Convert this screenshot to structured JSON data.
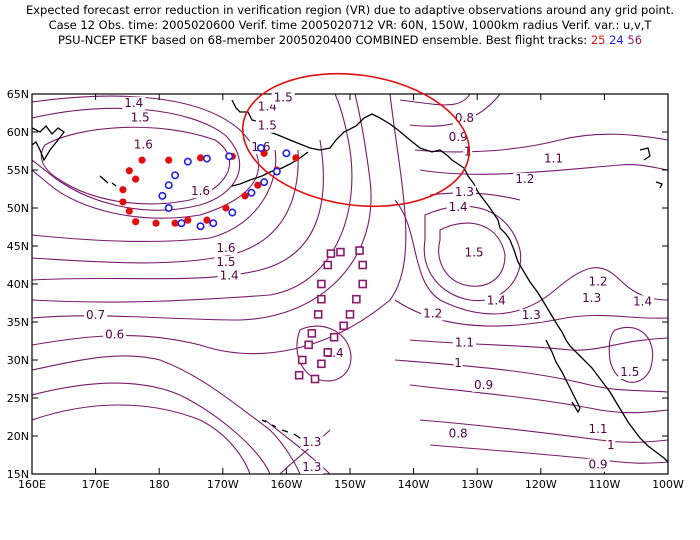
{
  "header": {
    "line1": "Expected forecast error reduction in verification region (VR) due to adaptive observations around any grid point.",
    "line2": "Case 12   Obs. time: 2005020600   Verif. time 2005020712   VR: 60N, 150W, 1000km radius   Verif. var.: u,v,T",
    "line3_main": "PSU-NCEP ETKF based on 68-member 2005020400 COMBINED ensemble.   Best flight tracks: ",
    "track1": "25",
    "track2": "24",
    "track3": "56"
  },
  "colors": {
    "contour": "#7a1a6e",
    "label": "#55004d",
    "vr_circle": "#e01010",
    "track1": "#e01010",
    "track2": "#2020e0",
    "track3": "#8a1a6e"
  },
  "map": {
    "lon_range": [
      160,
      260
    ],
    "lat_range": [
      15,
      65
    ],
    "x_ticks": [
      "160E",
      "170E",
      "180",
      "170W",
      "160W",
      "150W",
      "140W",
      "130W",
      "120W",
      "110W",
      "100W"
    ],
    "y_ticks": [
      "65N",
      "60N",
      "55N",
      "50N",
      "45N",
      "40N",
      "35N",
      "30N",
      "25N",
      "20N",
      "15N"
    ]
  },
  "contour_labels": [
    {
      "text": "1.4",
      "lon": 176,
      "lat": 63.3
    },
    {
      "text": "1.5",
      "lon": 177,
      "lat": 61.4
    },
    {
      "text": "1.6",
      "lon": 177.5,
      "lat": 57.8
    },
    {
      "text": "1.4",
      "lon": 197,
      "lat": 62.8
    },
    {
      "text": "1.5",
      "lon": 197,
      "lat": 60.3
    },
    {
      "text": "1.6",
      "lon": 196,
      "lat": 57.5
    },
    {
      "text": "1.5",
      "lon": 199.5,
      "lat": 64.0
    },
    {
      "text": "0.8",
      "lon": 228,
      "lat": 61.3
    },
    {
      "text": "0.9",
      "lon": 227,
      "lat": 58.8
    },
    {
      "text": "1",
      "lon": 228.5,
      "lat": 56.9
    },
    {
      "text": "1.1",
      "lon": 242,
      "lat": 56.0
    },
    {
      "text": "1.2",
      "lon": 237.5,
      "lat": 53.3
    },
    {
      "text": "1.3",
      "lon": 228,
      "lat": 51.6
    },
    {
      "text": "1.4",
      "lon": 227,
      "lat": 49.6
    },
    {
      "text": "1.5",
      "lon": 229.5,
      "lat": 43.6
    },
    {
      "text": "1.6",
      "lon": 186.5,
      "lat": 51.7
    },
    {
      "text": "1.6",
      "lon": 190.5,
      "lat": 44.2
    },
    {
      "text": "1.5",
      "lon": 190.5,
      "lat": 42.4
    },
    {
      "text": "1.4",
      "lon": 191,
      "lat": 40.6
    },
    {
      "text": "1.2",
      "lon": 223,
      "lat": 35.6
    },
    {
      "text": "1.3",
      "lon": 238.5,
      "lat": 35.4
    },
    {
      "text": "1.4",
      "lon": 233,
      "lat": 37.3
    },
    {
      "text": "1.2",
      "lon": 249,
      "lat": 39.8
    },
    {
      "text": "1.3",
      "lon": 248,
      "lat": 37.6
    },
    {
      "text": "1.4",
      "lon": 256,
      "lat": 37.2
    },
    {
      "text": "1.5",
      "lon": 254,
      "lat": 27.9
    },
    {
      "text": "1.1",
      "lon": 228,
      "lat": 31.8
    },
    {
      "text": "1",
      "lon": 227,
      "lat": 29.1
    },
    {
      "text": "0.9",
      "lon": 231,
      "lat": 26.2
    },
    {
      "text": "0.8",
      "lon": 227,
      "lat": 19.8
    },
    {
      "text": "1.1",
      "lon": 249,
      "lat": 20.4
    },
    {
      "text": "1",
      "lon": 251,
      "lat": 18.3
    },
    {
      "text": "0.9",
      "lon": 249,
      "lat": 15.7
    },
    {
      "text": "0.7",
      "lon": 170,
      "lat": 35.4
    },
    {
      "text": "0.6",
      "lon": 173,
      "lat": 32.8
    },
    {
      "text": "1.4",
      "lon": 207.5,
      "lat": 30.4
    },
    {
      "text": "1.3",
      "lon": 204,
      "lat": 18.7
    },
    {
      "text": "1.3",
      "lon": 204,
      "lat": 15.4
    }
  ],
  "vr_circle": {
    "lon": 210,
    "lat": 60
  },
  "track_red": [
    [
      177.3,
      56.3
    ],
    [
      175.3,
      54.9
    ],
    [
      176.3,
      53.8
    ],
    [
      174.3,
      52.4
    ],
    [
      174.3,
      50.8
    ],
    [
      175.3,
      49.6
    ],
    [
      176.3,
      48.2
    ],
    [
      179.5,
      48.0
    ],
    [
      182.5,
      48.0
    ],
    [
      184.5,
      48.4
    ],
    [
      187.5,
      48.4
    ],
    [
      190.5,
      50.0
    ],
    [
      193.5,
      51.6
    ],
    [
      195.5,
      53.0
    ],
    [
      198.5,
      55.0
    ],
    [
      201.5,
      56.6
    ],
    [
      196.5,
      57.2
    ],
    [
      191.5,
      56.8
    ],
    [
      186.5,
      56.6
    ],
    [
      181.5,
      56.3
    ]
  ],
  "track_blue": [
    [
      184.5,
      56.1
    ],
    [
      182.5,
      54.3
    ],
    [
      181.5,
      53.0
    ],
    [
      180.5,
      51.6
    ],
    [
      181.5,
      50.0
    ],
    [
      183.5,
      48.0
    ],
    [
      186.5,
      47.6
    ],
    [
      188.5,
      48.0
    ],
    [
      191.5,
      49.4
    ],
    [
      194.5,
      52.0
    ],
    [
      196.5,
      53.4
    ],
    [
      198.5,
      54.8
    ],
    [
      200.0,
      57.2
    ],
    [
      196.0,
      57.9
    ],
    [
      191.0,
      56.8
    ],
    [
      187.5,
      56.5
    ]
  ],
  "track_purple": [
    [
      207,
      44.0
    ],
    [
      208.5,
      44.2
    ],
    [
      211.5,
      44.4
    ],
    [
      212,
      42.5
    ],
    [
      206.5,
      42.5
    ],
    [
      212,
      40.0
    ],
    [
      205.5,
      40.0
    ],
    [
      211,
      38.0
    ],
    [
      205.5,
      38.0
    ],
    [
      210,
      36.0
    ],
    [
      205,
      36.0
    ],
    [
      209,
      34.5
    ],
    [
      204,
      33.5
    ],
    [
      207.5,
      33.0
    ],
    [
      203.5,
      32.0
    ],
    [
      206.5,
      31.0
    ],
    [
      202.5,
      30.0
    ],
    [
      205.5,
      29.5
    ],
    [
      202,
      28.0
    ],
    [
      204.5,
      27.5
    ]
  ]
}
